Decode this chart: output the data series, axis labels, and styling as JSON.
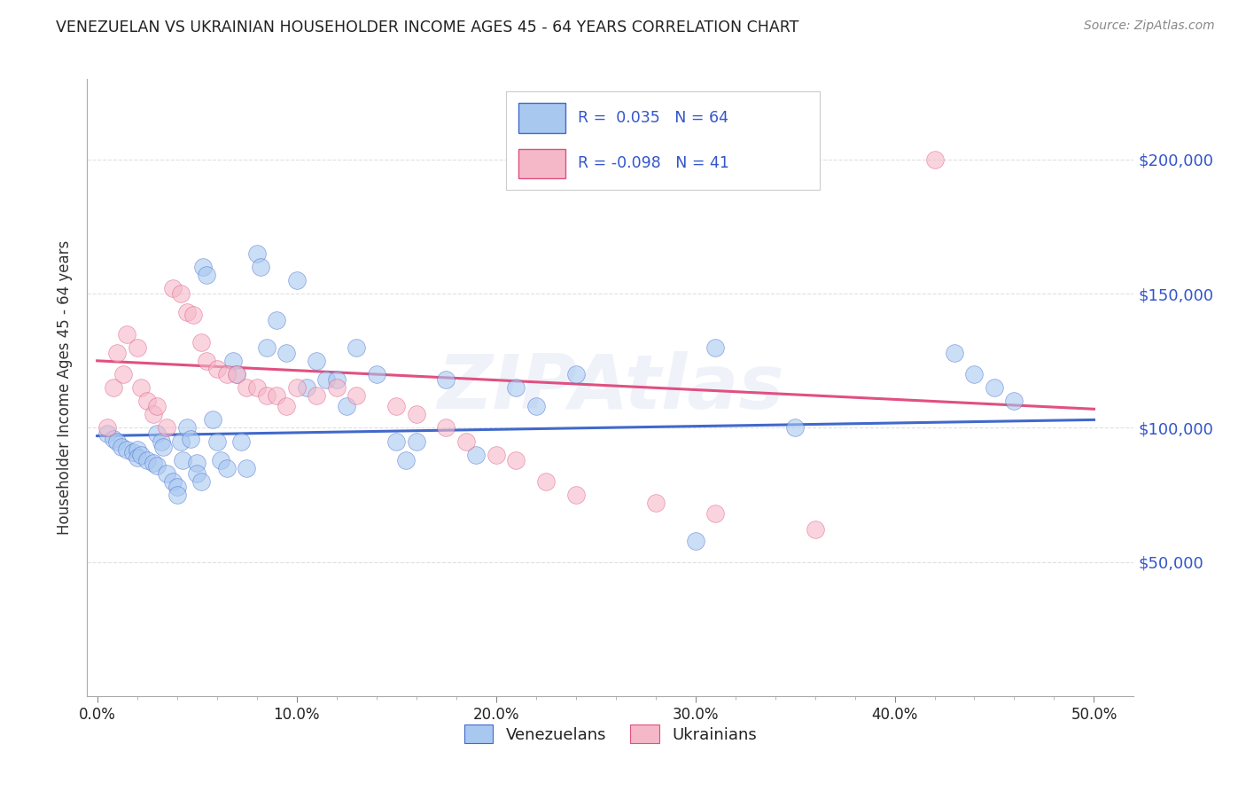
{
  "title": "VENEZUELAN VS UKRAINIAN HOUSEHOLDER INCOME AGES 45 - 64 YEARS CORRELATION CHART",
  "source": "Source: ZipAtlas.com",
  "xlabel_ticks": [
    "0.0%",
    "",
    "",
    "",
    "",
    "10.0%",
    "",
    "",
    "",
    "",
    "20.0%",
    "",
    "",
    "",
    "",
    "30.0%",
    "",
    "",
    "",
    "",
    "40.0%",
    "",
    "",
    "",
    "",
    "50.0%"
  ],
  "xlabel_vals": [
    0.0,
    0.02,
    0.04,
    0.06,
    0.08,
    0.1,
    0.12,
    0.14,
    0.16,
    0.18,
    0.2,
    0.22,
    0.24,
    0.26,
    0.28,
    0.3,
    0.32,
    0.34,
    0.36,
    0.38,
    0.4,
    0.42,
    0.44,
    0.46,
    0.48,
    0.5
  ],
  "xlabel_major_ticks": [
    0.0,
    0.1,
    0.2,
    0.3,
    0.4,
    0.5
  ],
  "xlabel_major_labels": [
    "0.0%",
    "10.0%",
    "20.0%",
    "30.0%",
    "40.0%",
    "50.0%"
  ],
  "ylabel": "Householder Income Ages 45 - 64 years",
  "ylabel_ticks_labels": [
    "$200,000",
    "$150,000",
    "$100,000",
    "$50,000"
  ],
  "ylabel_ticks_vals": [
    200000,
    150000,
    100000,
    50000
  ],
  "ylim": [
    0,
    230000
  ],
  "xlim": [
    -0.005,
    0.52
  ],
  "legend_label1": "Venezuelans",
  "legend_label2": "Ukrainians",
  "r1": "0.035",
  "n1": "64",
  "r2": "-0.098",
  "n2": "41",
  "color_blue": "#A8C8F0",
  "color_pink": "#F5B8C8",
  "color_blue_dark": "#4169CC",
  "color_pink_dark": "#E05080",
  "color_blue_text": "#3355CC",
  "color_grid": "#CCCCCC",
  "watermark": "ZIPAtlas",
  "blue_x": [
    0.005,
    0.008,
    0.01,
    0.012,
    0.015,
    0.018,
    0.02,
    0.02,
    0.022,
    0.025,
    0.028,
    0.03,
    0.03,
    0.032,
    0.033,
    0.035,
    0.038,
    0.04,
    0.04,
    0.042,
    0.043,
    0.045,
    0.047,
    0.05,
    0.05,
    0.052,
    0.053,
    0.055,
    0.058,
    0.06,
    0.062,
    0.065,
    0.068,
    0.07,
    0.072,
    0.075,
    0.08,
    0.082,
    0.085,
    0.09,
    0.095,
    0.1,
    0.105,
    0.11,
    0.115,
    0.12,
    0.125,
    0.13,
    0.14,
    0.15,
    0.155,
    0.16,
    0.175,
    0.19,
    0.21,
    0.22,
    0.24,
    0.3,
    0.31,
    0.35,
    0.43,
    0.44,
    0.45,
    0.46
  ],
  "blue_y": [
    98000,
    96000,
    95000,
    93000,
    92000,
    91000,
    92000,
    89000,
    90000,
    88000,
    87000,
    86000,
    98000,
    95000,
    93000,
    83000,
    80000,
    78000,
    75000,
    95000,
    88000,
    100000,
    96000,
    87000,
    83000,
    80000,
    160000,
    157000,
    103000,
    95000,
    88000,
    85000,
    125000,
    120000,
    95000,
    85000,
    165000,
    160000,
    130000,
    140000,
    128000,
    155000,
    115000,
    125000,
    118000,
    118000,
    108000,
    130000,
    120000,
    95000,
    88000,
    95000,
    118000,
    90000,
    115000,
    108000,
    120000,
    58000,
    130000,
    100000,
    128000,
    120000,
    115000,
    110000
  ],
  "pink_x": [
    0.005,
    0.008,
    0.01,
    0.013,
    0.015,
    0.02,
    0.022,
    0.025,
    0.028,
    0.03,
    0.035,
    0.038,
    0.042,
    0.045,
    0.048,
    0.052,
    0.055,
    0.06,
    0.065,
    0.07,
    0.075,
    0.08,
    0.085,
    0.09,
    0.095,
    0.1,
    0.11,
    0.12,
    0.13,
    0.15,
    0.16,
    0.175,
    0.185,
    0.2,
    0.21,
    0.225,
    0.24,
    0.28,
    0.31,
    0.36,
    0.42
  ],
  "pink_y": [
    100000,
    115000,
    128000,
    120000,
    135000,
    130000,
    115000,
    110000,
    105000,
    108000,
    100000,
    152000,
    150000,
    143000,
    142000,
    132000,
    125000,
    122000,
    120000,
    120000,
    115000,
    115000,
    112000,
    112000,
    108000,
    115000,
    112000,
    115000,
    112000,
    108000,
    105000,
    100000,
    95000,
    90000,
    88000,
    80000,
    75000,
    72000,
    68000,
    62000,
    200000
  ]
}
